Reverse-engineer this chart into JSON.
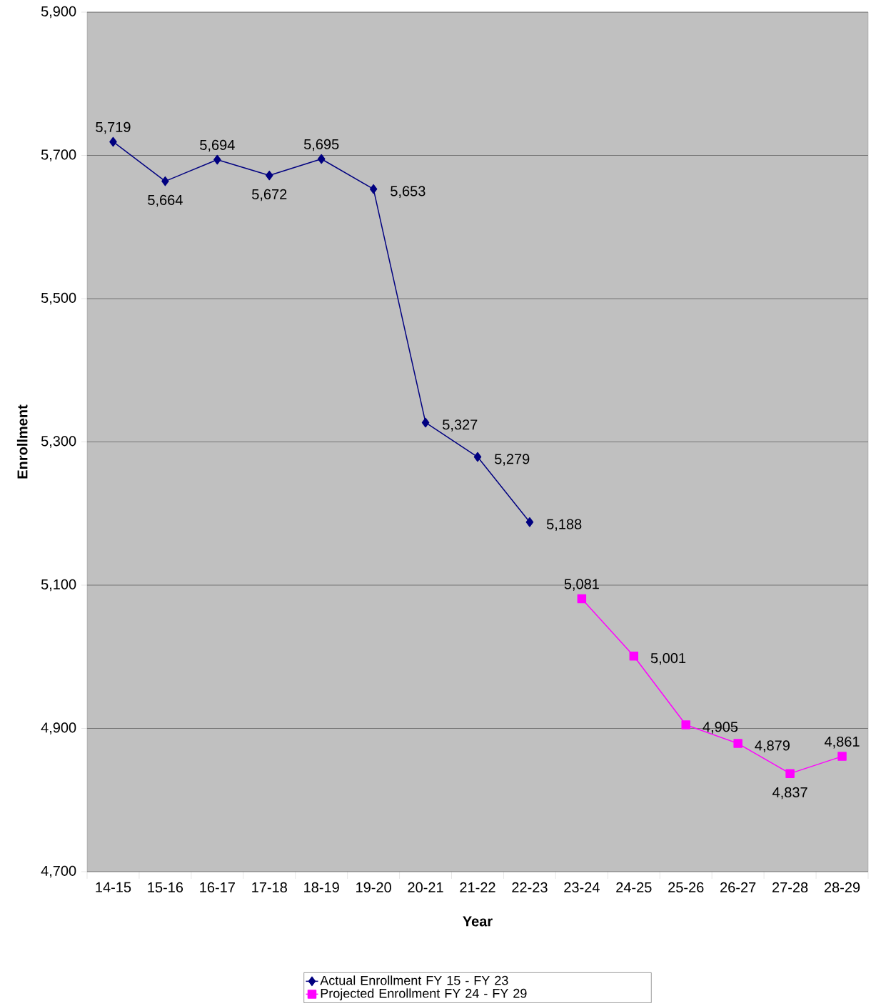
{
  "chart_data": {
    "type": "line",
    "xlabel": "Year",
    "ylabel": "Enrollment",
    "categories": [
      "14-15",
      "15-16",
      "16-17",
      "17-18",
      "18-19",
      "19-20",
      "20-21",
      "21-22",
      "22-23",
      "23-24",
      "24-25",
      "25-26",
      "26-27",
      "27-28",
      "28-29"
    ],
    "series": [
      {
        "name": "Actual Enrollment FY 15 - FY 23",
        "color": "#000080",
        "marker": "diamond",
        "values": [
          5719,
          5664,
          5694,
          5672,
          5695,
          5653,
          5327,
          5279,
          5188,
          null,
          null,
          null,
          null,
          null,
          null
        ],
        "value_labels": [
          "5,719",
          "5,664",
          "5,694",
          "5,672",
          "5,695",
          "5,653",
          "5,327",
          "5,279",
          "5,188",
          null,
          null,
          null,
          null,
          null,
          null
        ]
      },
      {
        "name": "Projected Enrollment FY 24 - FY 29",
        "color": "#ff00ff",
        "marker": "square",
        "values": [
          null,
          null,
          null,
          null,
          null,
          null,
          null,
          null,
          null,
          5081,
          5001,
          4905,
          4879,
          4837,
          4861
        ],
        "value_labels": [
          null,
          null,
          null,
          null,
          null,
          null,
          null,
          null,
          null,
          "5,081",
          "5,001",
          "4,905",
          "4,879",
          "4,837",
          "4,861"
        ]
      }
    ],
    "ylim": [
      4700,
      5900
    ],
    "yticks": [
      {
        "value": 4700,
        "label": "4,700"
      },
      {
        "value": 4900,
        "label": "4,900"
      },
      {
        "value": 5100,
        "label": "5,100"
      },
      {
        "value": 5300,
        "label": "5,300"
      },
      {
        "value": 5500,
        "label": "5,500"
      },
      {
        "value": 5700,
        "label": "5,700"
      },
      {
        "value": 5900,
        "label": "5,900"
      }
    ],
    "grid": "y",
    "legend": "bottom"
  }
}
